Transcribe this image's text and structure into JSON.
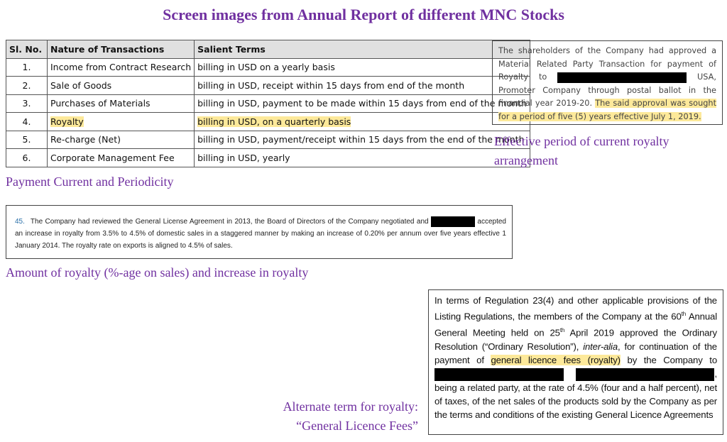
{
  "header": {
    "title": "Screen images from Annual Report of different MNC Stocks"
  },
  "table": {
    "headers": [
      "Sl. No.",
      "Nature of Transactions",
      "Salient Terms"
    ],
    "rows": [
      [
        "1.",
        "Income from Contract Research",
        "billing in USD on a yearly basis"
      ],
      [
        "2.",
        "Sale of Goods",
        "billing in USD, receipt within 15 days from end of the month"
      ],
      [
        "3.",
        "Purchases of Materials",
        "billing in USD, payment to be made within 15 days from end of the month"
      ],
      [
        "4.",
        "Royalty",
        "billing in USD, on a quarterly basis"
      ],
      [
        "5.",
        "Re-charge (Net)",
        "billing in USD, payment/receipt within 15 days from the end of the month"
      ],
      [
        "6.",
        "Corporate Management Fee",
        "billing in USD, yearly"
      ]
    ],
    "caption": "Payment Current and Periodicity"
  },
  "excerpt1": {
    "text_a": "The shareholders of the Company had approved a Material Related Party Transaction for payment of Royalty to",
    "text_b": "USA, Promoter Company through postal ballot in the financial year 2019-20.",
    "highlight": "The said approval was sought for a period of five (5) years effective July 1, 2019.",
    "caption": "Effective period of current royalty arrangement"
  },
  "excerpt2": {
    "number": "45.",
    "text_a": "The Company had reviewed the General License Agreement in 2013, the Board of Directors of the Company negotiated and",
    "text_b": "accepted an increase in royalty from 3.5% to 4.5% of domestic sales in a staggered manner by making an increase of 0.20% per annum over five years effective 1 January 2014. The royalty rate on exports is aligned to 4.5% of sales.",
    "caption": "Amount of royalty (%-age on sales) and increase in royalty"
  },
  "excerpt3": {
    "text_a": "In terms of Regulation 23(4) and other applicable provisions of the Listing Regulations, the members of the Company at the 60",
    "sup_a": "th",
    "text_b": "Annual General Meeting held on 25",
    "sup_b": "th",
    "text_c": "April 2019 approved the Ordinary Resolution (“Ordinary Resolution”),",
    "italic": "inter-alia",
    "text_d": ", for continuation of the payment of",
    "highlight": "general licence fees (royalty)",
    "text_e": "by the Company to",
    "text_f": ", being a related party, at the rate of 4.5% (four and a half percent), net of taxes, of the net sales of the products sold by the Company as per the terms and conditions of the existing General Licence Agreements",
    "caption_line1": "Alternate term for royalty:",
    "caption_line2": "“General Licence Fees”"
  }
}
